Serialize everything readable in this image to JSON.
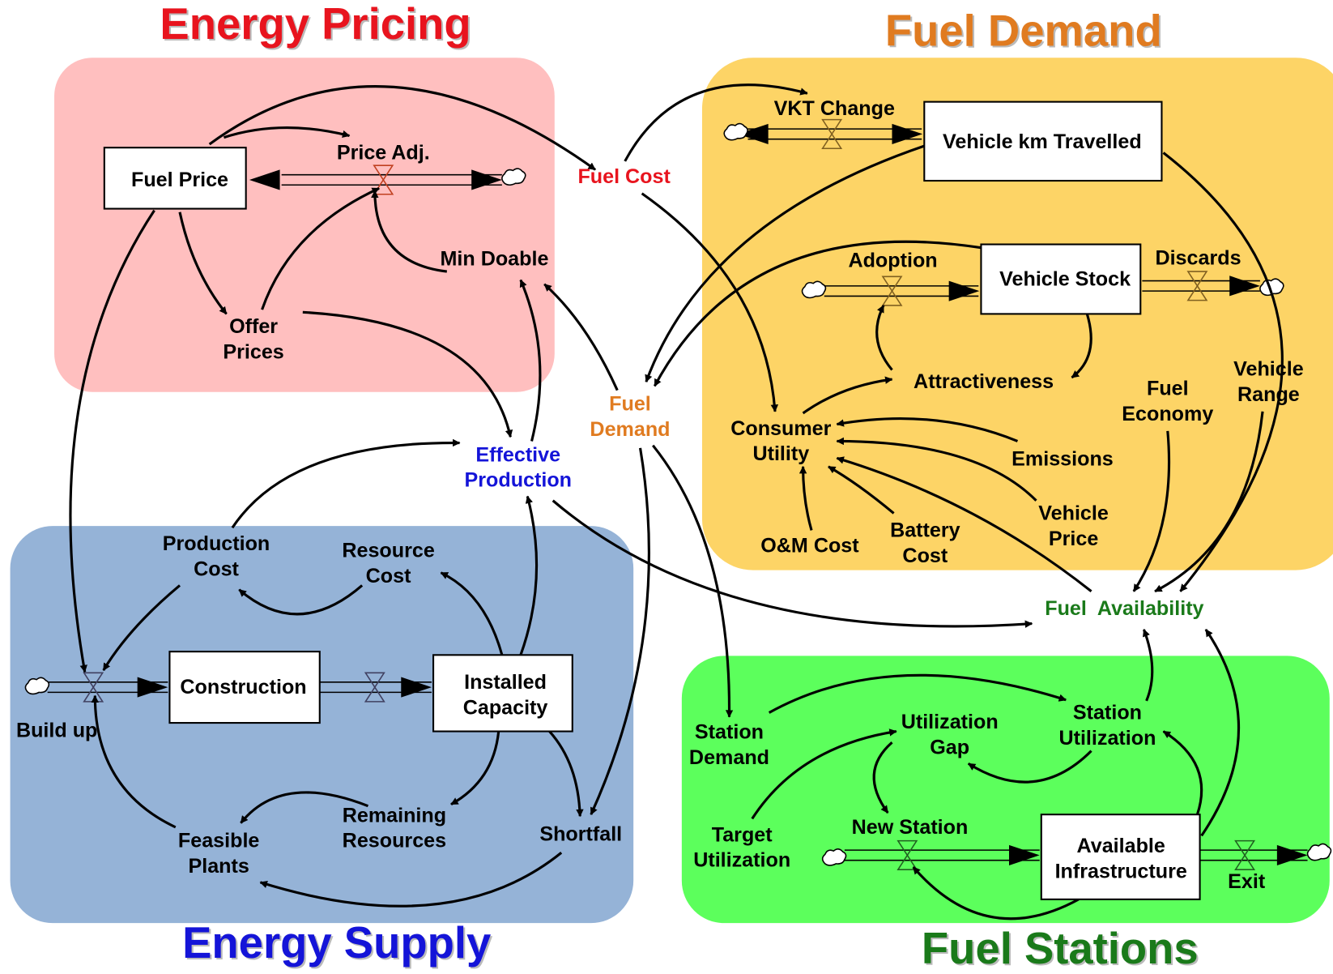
{
  "sectors": [
    {
      "title": "Energy Pricing"
    },
    {
      "title": "Fuel Demand"
    },
    {
      "title": "Energy Supply"
    },
    {
      "title": "Fuel Stations"
    }
  ],
  "nodes": [
    {
      "lines": [
        "Fuel Price"
      ]
    },
    {
      "lines": [
        "Vehicle km Travelled"
      ]
    },
    {
      "lines": [
        "Vehicle Stock"
      ]
    },
    {
      "lines": [
        "Construction"
      ]
    },
    {
      "lines": [
        "Installed",
        "Capacity"
      ]
    },
    {
      "lines": [
        "Available",
        "Infrastructure"
      ]
    },
    {
      "lines": [
        "Price Adj."
      ]
    },
    {
      "lines": [
        "Min Doable"
      ]
    },
    {
      "lines": [
        "Offer",
        "Prices"
      ]
    },
    {
      "lines": [
        "Fuel Cost"
      ]
    },
    {
      "lines": [
        "Fuel",
        "Demand"
      ]
    },
    {
      "lines": [
        "Effective",
        "Production"
      ]
    },
    {
      "lines": [
        "VKT Change"
      ]
    },
    {
      "lines": [
        "Adoption"
      ]
    },
    {
      "lines": [
        "Discards"
      ]
    },
    {
      "lines": [
        "Attractiveness"
      ]
    },
    {
      "lines": [
        "Consumer",
        "Utility"
      ]
    },
    {
      "lines": [
        "Emissions"
      ]
    },
    {
      "lines": [
        "Vehicle",
        "Price"
      ]
    },
    {
      "lines": [
        "Battery",
        "Cost"
      ]
    },
    {
      "lines": [
        "O&M Cost"
      ]
    },
    {
      "lines": [
        "Fuel",
        "Economy"
      ]
    },
    {
      "lines": [
        "Vehicle",
        "Range"
      ]
    },
    {
      "lines": [
        "Fuel  Availability"
      ]
    },
    {
      "lines": [
        "Production",
        "Cost"
      ]
    },
    {
      "lines": [
        "Resource",
        "Cost"
      ]
    },
    {
      "lines": [
        "Build up"
      ]
    },
    {
      "lines": [
        "Remaining",
        "Resources"
      ]
    },
    {
      "lines": [
        "Feasible",
        "Plants"
      ]
    },
    {
      "lines": [
        "Shortfall"
      ]
    },
    {
      "lines": [
        "Station",
        "Demand"
      ]
    },
    {
      "lines": [
        "Utilization",
        "Gap"
      ]
    },
    {
      "lines": [
        "Station",
        "Utilization"
      ]
    },
    {
      "lines": [
        "Target",
        "Utilization"
      ]
    },
    {
      "lines": [
        "New Station"
      ]
    },
    {
      "lines": [
        "Exit"
      ]
    }
  ]
}
